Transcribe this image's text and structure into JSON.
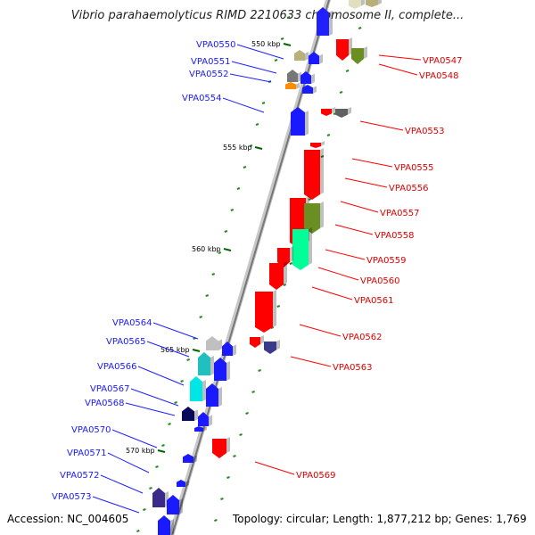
{
  "title": "Vibrio parahaemolyticus RIMD 2210633 chromosome II, complete...",
  "footer": {
    "accession": "Accession: NC_004605",
    "topology": "Topology: circular; Length: 1,877,212 bp; Genes: 1,769"
  },
  "colors": {
    "plus_gene": "#1010ff",
    "minus_gene": "#ff0000",
    "backbone": "#888888",
    "tick_minor": "#228b22",
    "label_plus": "#1a1aff",
    "label_minus": "#e00000"
  },
  "scale_labels": [
    "550 kbp",
    "555 kbp",
    "560 kbp",
    "565 kbp",
    "570 kbp"
  ],
  "genes_plus": [
    "VPA0550",
    "VPA0551",
    "VPA0552",
    "VPA0554",
    "VPA0564",
    "VPA0565",
    "VPA0566",
    "VPA0567",
    "VPA0568",
    "VPA0570",
    "VPA0571",
    "VPA0572",
    "VPA0573"
  ],
  "genes_minus": [
    "VPA0547",
    "VPA0548",
    "VPA0553",
    "VPA0555",
    "VPA0556",
    "VPA0557",
    "VPA0558",
    "VPA0559",
    "VPA0560",
    "VPA0561",
    "VPA0562",
    "VPA0563",
    "VPA0569"
  ]
}
